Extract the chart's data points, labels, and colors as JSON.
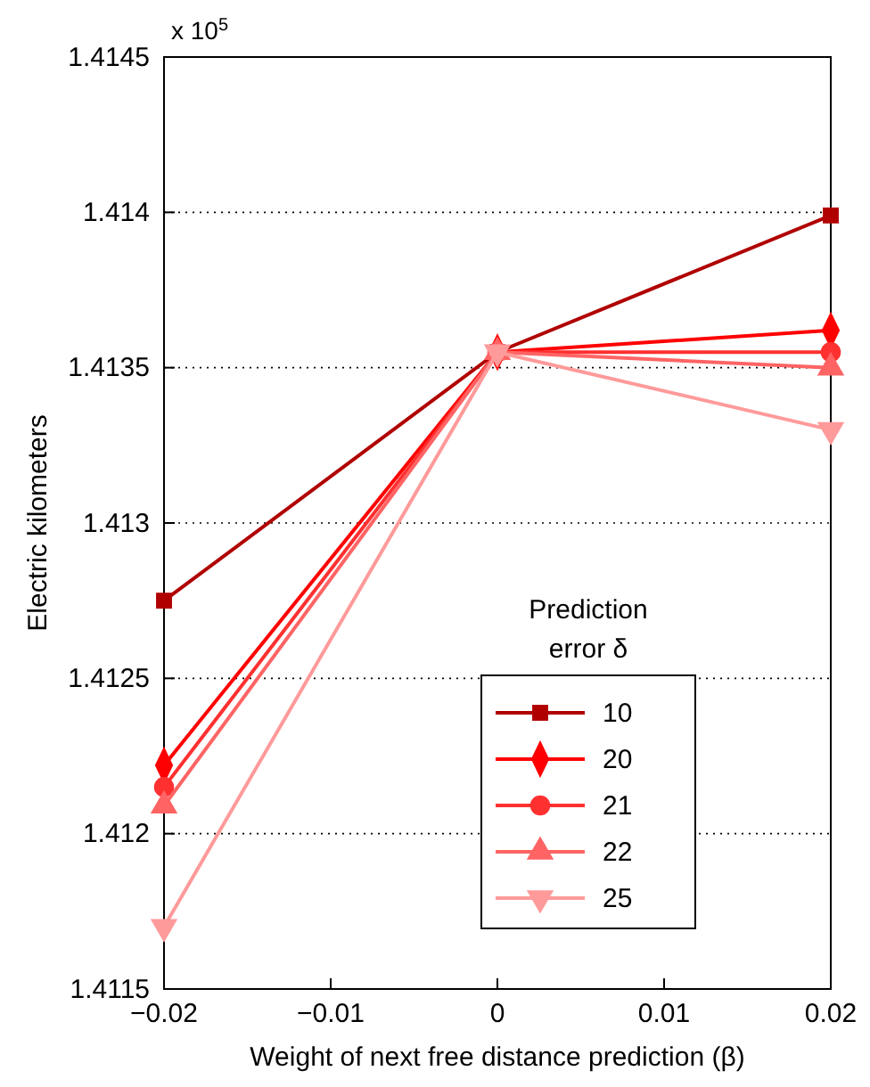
{
  "chart_data": {
    "type": "line",
    "xlabel": "Weight of next free distance prediction (β)",
    "ylabel": "Electric kilometers",
    "legend_title": "Prediction error δ",
    "annotations": [
      "x 10$^{5}$"
    ],
    "x": [
      -0.02,
      0,
      0.02
    ],
    "xlim": [
      -0.02,
      0.02
    ],
    "xticks": [
      {
        "value": -0.02,
        "label": "−0.02"
      },
      {
        "value": -0.01,
        "label": "−0.01"
      },
      0,
      0.01,
      0.02
    ],
    "ylim": [
      1.4115,
      1.4145
    ],
    "yticks": [
      1.4115,
      1.412,
      1.4125,
      1.413,
      1.4135,
      1.414,
      1.4145
    ],
    "grid": "y",
    "legend": "bottom right",
    "line_style": "solid",
    "series": [
      {
        "name": "10",
        "color": "#b00000",
        "marker": "square",
        "values": [
          1.41275,
          1.41355,
          1.41399
        ]
      },
      {
        "name": "20",
        "color": "#ff0000",
        "marker": "diamond",
        "values": [
          1.41222,
          1.41355,
          1.41362
        ]
      },
      {
        "name": "21",
        "color": "#ff3030",
        "marker": "circle",
        "values": [
          1.41215,
          1.41355,
          1.41355
        ]
      },
      {
        "name": "22",
        "color": "#ff6464",
        "marker": "triangle",
        "values": [
          1.41209,
          1.41355,
          1.4135
        ]
      },
      {
        "name": "25",
        "color": "#ff9a9a",
        "marker": "triangle-down",
        "values": [
          1.4117,
          1.41355,
          1.4133
        ]
      }
    ]
  }
}
